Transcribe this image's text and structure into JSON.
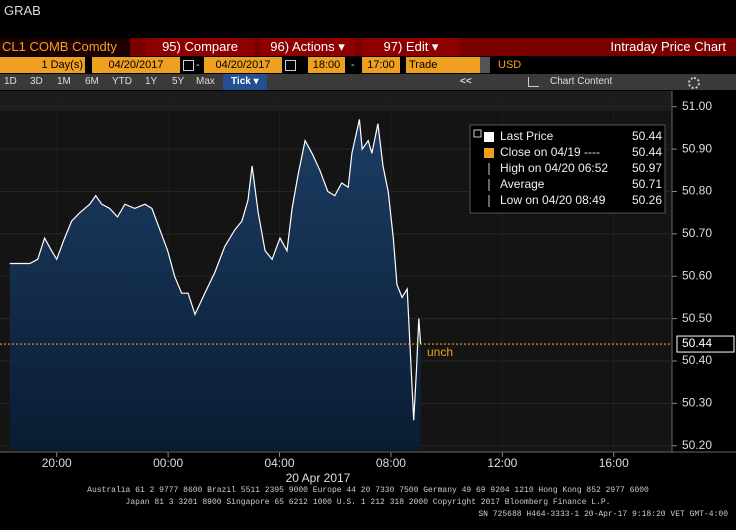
{
  "header": {
    "title": "GRAB"
  },
  "toolbar": {
    "security": "CL1 COMB Comdty",
    "compare": "95) Compare",
    "actions": "96) Actions ▾",
    "edit": "97) Edit ▾",
    "title": "Intraday Price Chart"
  },
  "range": {
    "period": "1 Day(s)",
    "start_date": "04/20/2017",
    "separator": "-",
    "end_date": "04/20/2017",
    "start_time": "18:00",
    "end_time": "17:00",
    "field": "Trade",
    "currency": "USD"
  },
  "buttons": [
    "1D",
    "3D",
    "1M",
    "6M",
    "YTD",
    "1Y",
    "5Y",
    "Max",
    "Tick ▾"
  ],
  "nav": "<<",
  "chart_content": "Chart Content",
  "footer": [
    "Australia 61 2 9777 8600 Brazil 5511 2395 9000 Europe 44 20 7330 7500 Germany 49 69 9204 1210 Hong Kong 852 2977 6000",
    "Japan 81 3 3201 8900      Singapore 65 6212 1000      U.S. 1 212 318 2000              Copyright 2017 Bloomberg Finance L.P.",
    "SN 725688 H464-3333-1 20-Apr-17   9:18:20 VET  GMT-4:00"
  ],
  "chart_data": {
    "type": "line",
    "x_label": "20 Apr 2017",
    "x": [
      "18:19",
      "18:40",
      "19:02",
      "19:19",
      "19:34",
      "19:49",
      "20:00",
      "20:17",
      "20:32",
      "20:50",
      "21:11",
      "21:24",
      "21:37",
      "21:54",
      "22:11",
      "22:27",
      "22:48",
      "23:10",
      "23:25",
      "23:42",
      "23:59",
      "00:14",
      "00:29",
      "00:43",
      "00:58",
      "01:19",
      "01:41",
      "02:02",
      "02:24",
      "02:39",
      "02:52",
      "03:01",
      "03:14",
      "03:29",
      "03:44",
      "04:01",
      "04:16",
      "04:27",
      "04:40",
      "04:55",
      "05:10",
      "05:27",
      "05:44",
      "05:59",
      "06:14",
      "06:28",
      "06:36",
      "06:52",
      "06:58",
      "07:11",
      "07:19",
      "07:32",
      "07:43",
      "07:54",
      "08:05",
      "08:13",
      "08:24",
      "08:35",
      "08:49",
      "08:55",
      "09:00",
      "09:04"
    ],
    "series": [
      {
        "name": "Last Price",
        "color": "#ffffff",
        "values": [
          50.63,
          50.63,
          50.63,
          50.64,
          50.69,
          50.66,
          50.64,
          50.69,
          50.73,
          50.75,
          50.77,
          50.79,
          50.77,
          50.76,
          50.74,
          50.77,
          50.76,
          50.77,
          50.76,
          50.71,
          50.66,
          50.6,
          50.56,
          50.56,
          50.51,
          50.56,
          50.61,
          50.67,
          50.71,
          50.73,
          50.78,
          50.86,
          50.75,
          50.66,
          50.64,
          50.69,
          50.66,
          50.76,
          50.84,
          50.92,
          50.89,
          50.85,
          50.8,
          50.79,
          50.82,
          50.81,
          50.89,
          50.97,
          50.9,
          50.92,
          50.89,
          50.96,
          50.86,
          50.8,
          50.69,
          50.58,
          50.55,
          50.57,
          50.26,
          50.38,
          50.5,
          50.44
        ]
      }
    ],
    "legend": [
      {
        "label": "Last Price",
        "value": 50.44,
        "color": "#ffffff"
      },
      {
        "label": "Close on 04/19 ----",
        "value": 50.44,
        "color": "#f0a020"
      },
      {
        "label": "High on 04/20 06:52",
        "value": 50.97
      },
      {
        "label": "Average",
        "value": 50.71
      },
      {
        "label": "Low on 04/20 08:49",
        "value": 50.26
      }
    ],
    "ref_label": "unch",
    "ref_color": "#f0a020",
    "xlim": [
      "18:00",
      "17:59"
    ],
    "xticks": [
      "20:00",
      "00:00",
      "04:00",
      "08:00",
      "12:00",
      "16:00"
    ],
    "ylim": [
      50.19,
      51.03
    ],
    "yticks": [
      {
        "value": 50.2,
        "label": "50.20"
      },
      {
        "value": 50.3,
        "label": "50.30"
      },
      {
        "value": 50.4,
        "label": "50.40"
      },
      {
        "value": 50.5,
        "label": "50.50"
      },
      {
        "value": 50.6,
        "label": "50.60"
      },
      {
        "value": 50.7,
        "label": "50.70"
      },
      {
        "value": 50.8,
        "label": "50.80"
      },
      {
        "value": 50.9,
        "label": "50.90"
      },
      {
        "value": 51.0,
        "label": "51.00"
      }
    ],
    "grid": true
  }
}
